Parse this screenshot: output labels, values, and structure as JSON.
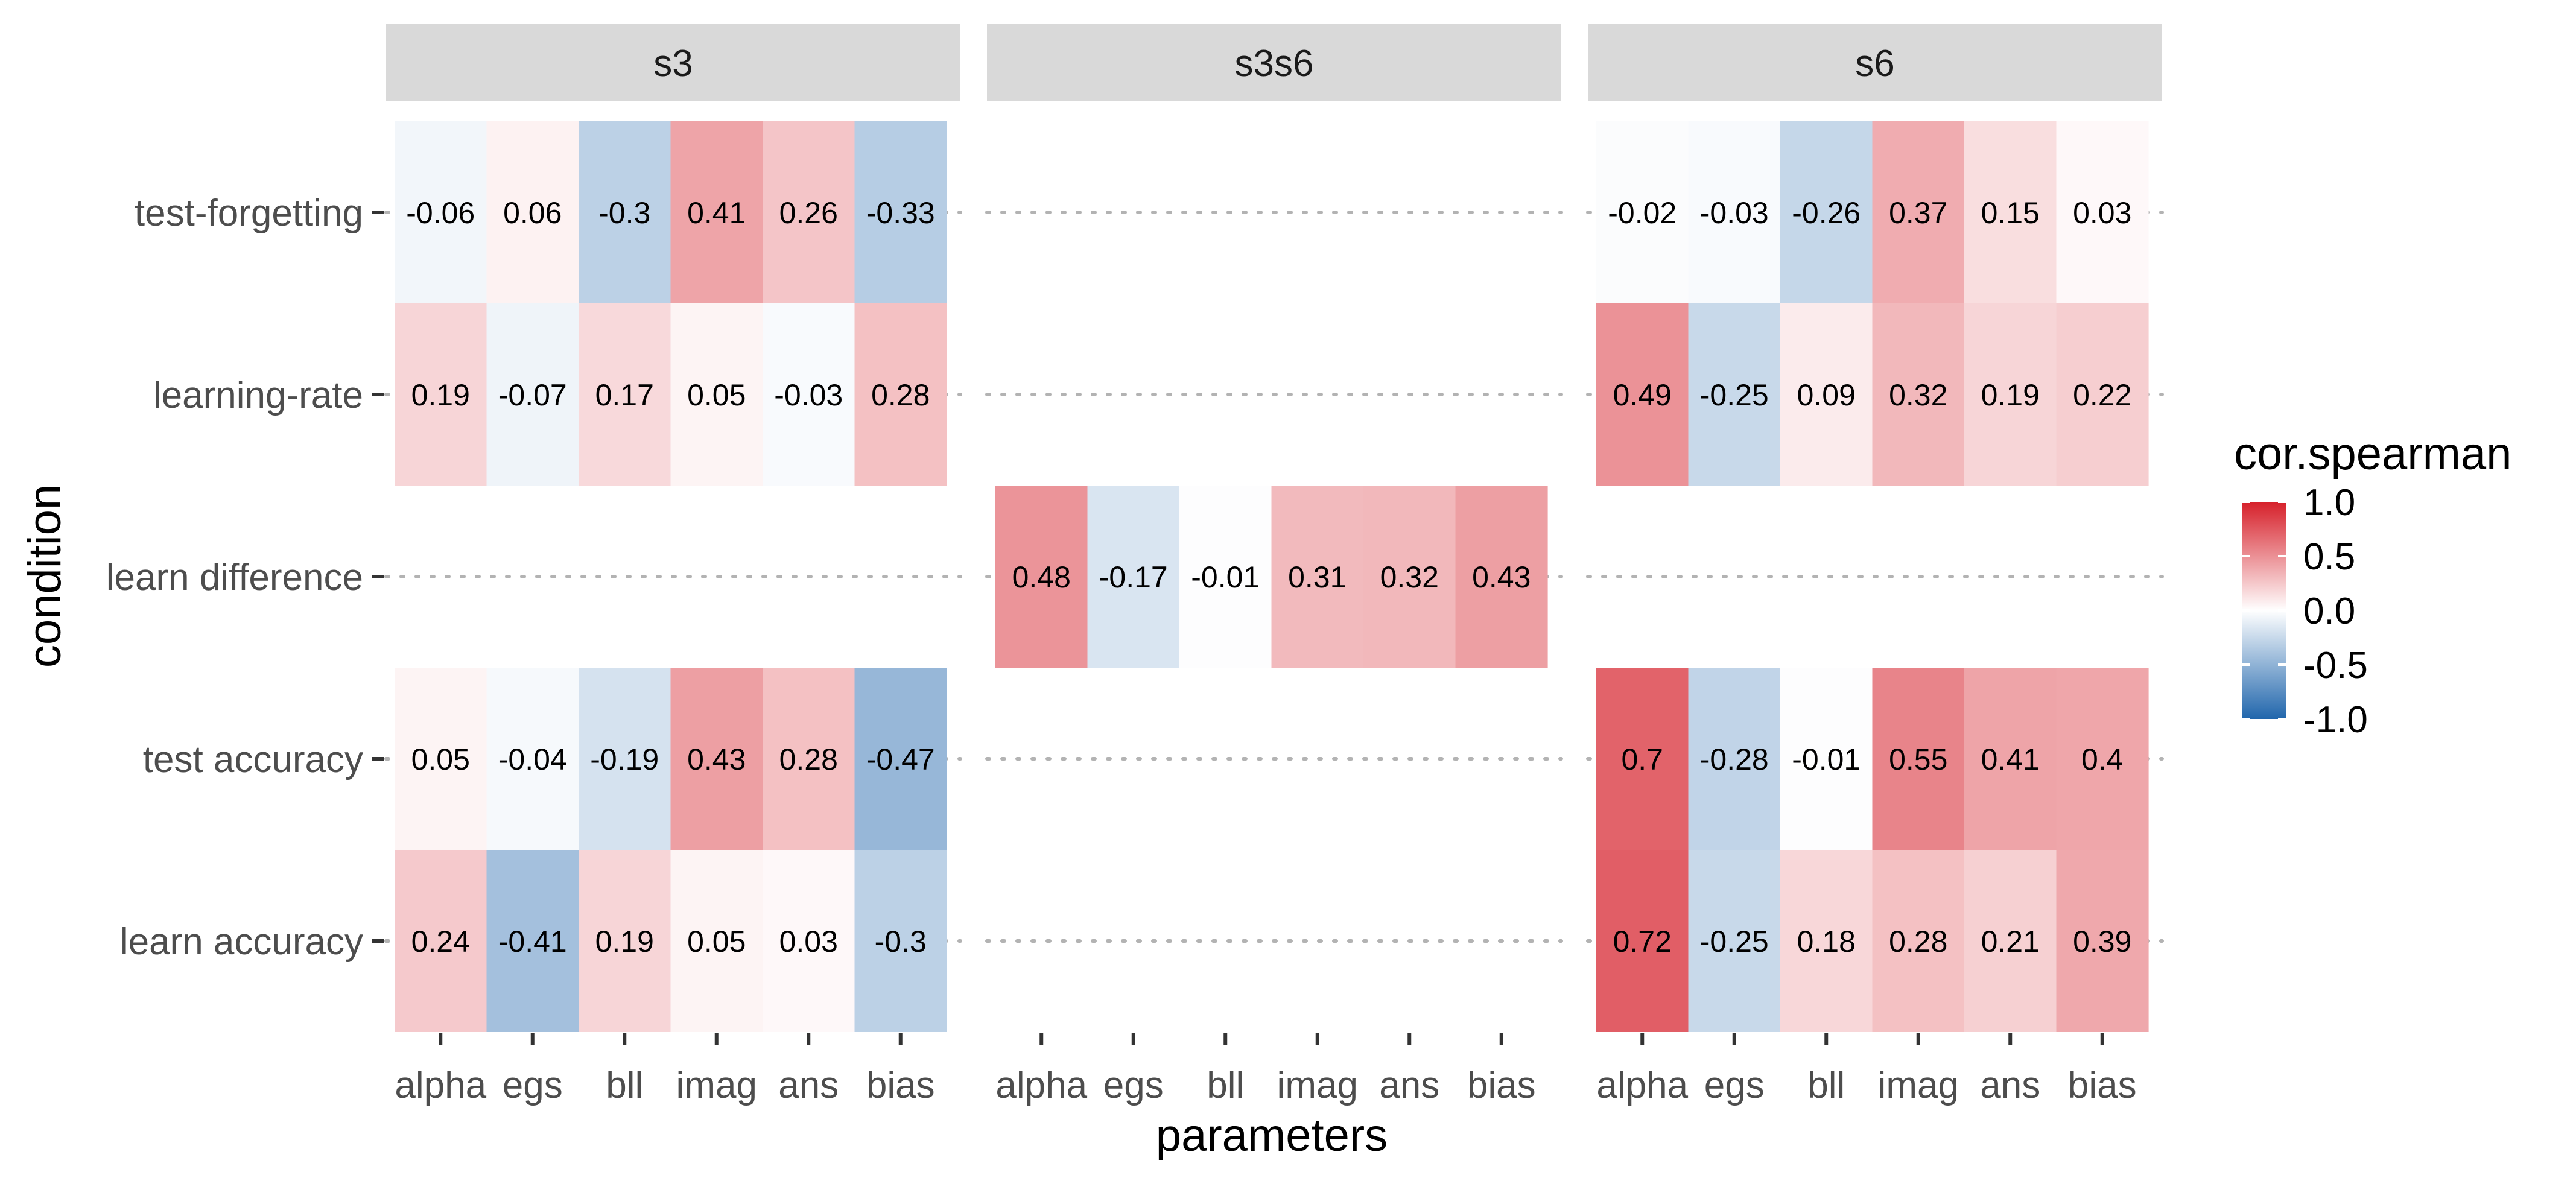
{
  "chart_data": {
    "type": "heatmap",
    "facets": [
      "s3",
      "s3s6",
      "s6"
    ],
    "x": [
      "alpha",
      "egs",
      "bll",
      "imag",
      "ans",
      "bias"
    ],
    "y": [
      "test-forgetting",
      "learning-rate",
      "learn difference",
      "test accuracy",
      "learn accuracy"
    ],
    "xlabel": "parameters",
    "ylabel": "condition",
    "legend": {
      "title": "cor.spearman",
      "ticks": [
        "1.0",
        "0.5",
        "0.0",
        "-0.5",
        "-1.0"
      ],
      "tick_values": [
        1.0,
        0.5,
        0.0,
        -0.5,
        -1.0
      ],
      "range": [
        -1,
        1
      ],
      "colors": {
        "low": "#2166AC",
        "mid": "#FFFFFF",
        "high": "#D6202A"
      }
    },
    "values": {
      "s3": {
        "test-forgetting": [
          "-0.06",
          "0.06",
          "-0.3",
          "0.41",
          "0.26",
          "-0.33"
        ],
        "learning-rate": [
          "0.19",
          "-0.07",
          "0.17",
          "0.05",
          "-0.03",
          "0.28"
        ],
        "learn difference": null,
        "test accuracy": [
          "0.05",
          "-0.04",
          "-0.19",
          "0.43",
          "0.28",
          "-0.47"
        ],
        "learn accuracy": [
          "0.24",
          "-0.41",
          "0.19",
          "0.05",
          "0.03",
          "-0.3"
        ]
      },
      "s3s6": {
        "test-forgetting": null,
        "learning-rate": null,
        "learn difference": [
          "0.48",
          "-0.17",
          "-0.01",
          "0.31",
          "0.32",
          "0.43"
        ],
        "test accuracy": null,
        "learn accuracy": null
      },
      "s6": {
        "test-forgetting": [
          "-0.02",
          "-0.03",
          "-0.26",
          "0.37",
          "0.15",
          "0.03"
        ],
        "learning-rate": [
          "0.49",
          "-0.25",
          "0.09",
          "0.32",
          "0.19",
          "0.22"
        ],
        "learn difference": null,
        "test accuracy": [
          "0.7",
          "-0.28",
          "-0.01",
          "0.55",
          "0.41",
          "0.4"
        ],
        "learn accuracy": [
          "0.72",
          "-0.25",
          "0.18",
          "0.28",
          "0.21",
          "0.39"
        ]
      }
    }
  }
}
